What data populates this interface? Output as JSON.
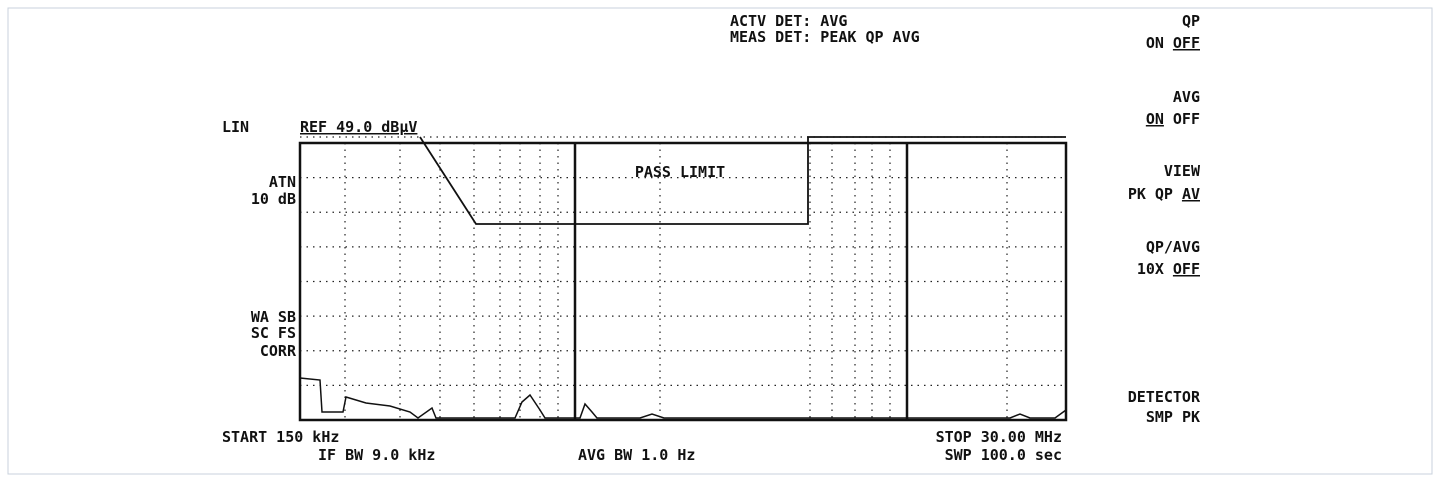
{
  "header": {
    "lines": [
      "ACTV DET: AVG",
      "MEAS DET: PEAK QP AVG"
    ]
  },
  "left": {
    "scale": "LIN",
    "ref": "REF 49.0 dBμV",
    "atn": [
      "ATN",
      "10 dB"
    ],
    "corr": [
      "WA SB",
      "SC FS",
      "CORR"
    ]
  },
  "plot": {
    "annotation": "PASS LIMIT"
  },
  "footer": {
    "start": "START 150 kHz",
    "if_bw": "IF BW 9.0 kHz",
    "avg_bw": "AVG BW 1.0 Hz",
    "stop": "STOP 30.00 MHz",
    "sweep": "SWP 100.0 sec"
  },
  "softkeys": [
    {
      "title": "QP",
      "options": [
        {
          "text": "ON",
          "underlined": false
        },
        {
          "text": "OFF",
          "underlined": true
        }
      ]
    },
    {
      "title": "AVG",
      "options": [
        {
          "text": "ON",
          "underlined": true
        },
        {
          "text": "OFF",
          "underlined": false
        }
      ]
    },
    {
      "title": "VIEW",
      "options": [
        {
          "text": "PK",
          "underlined": false
        },
        {
          "text": "QP",
          "underlined": false
        },
        {
          "text": "AV",
          "underlined": true
        }
      ]
    },
    {
      "title": "QP/AVG",
      "options": [
        {
          "text": "10X",
          "underlined": false
        },
        {
          "text": "OFF",
          "underlined": true
        }
      ]
    },
    {
      "title": "DETECTOR",
      "options": [
        {
          "text": "SMP",
          "underlined": false
        },
        {
          "text": "PK",
          "underlined": false
        }
      ]
    }
  ]
}
